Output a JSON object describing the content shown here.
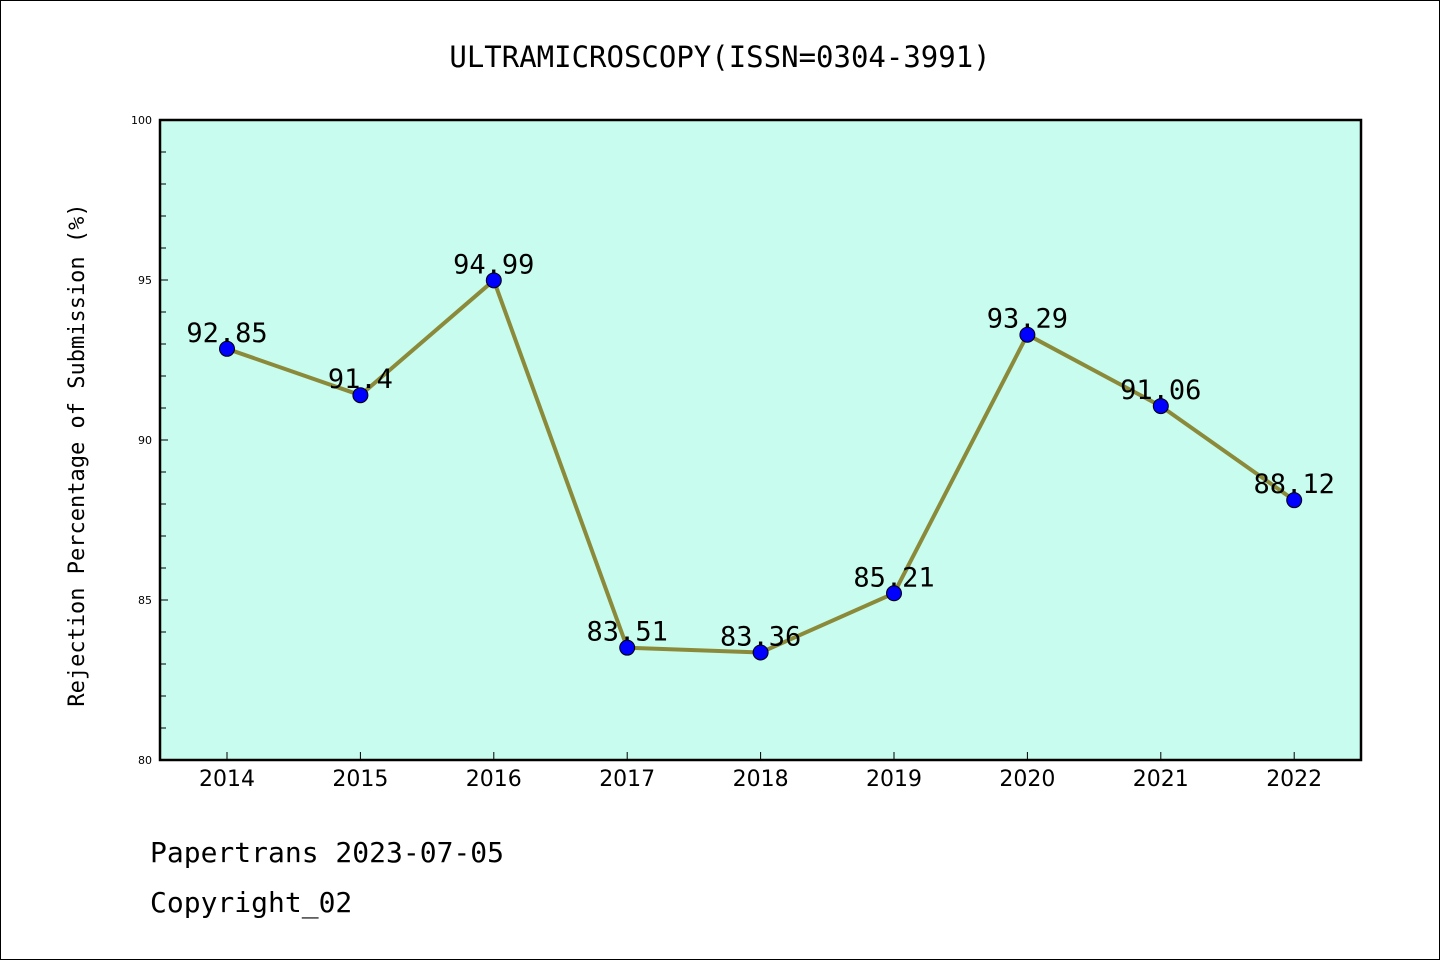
{
  "chart_data": {
    "type": "line",
    "title": "ULTRAMICROSCOPY(ISSN=0304-3991)",
    "xlabel": "",
    "ylabel": "Rejection Percentage of Submission (%)",
    "categories": [
      "2014",
      "2015",
      "2016",
      "2017",
      "2018",
      "2019",
      "2020",
      "2021",
      "2022"
    ],
    "values": [
      92.85,
      91.4,
      94.99,
      83.51,
      83.36,
      85.21,
      93.29,
      91.06,
      88.12
    ],
    "data_labels": [
      "92.85",
      "91.4",
      "94.99",
      "83.51",
      "83.36",
      "85.21",
      "93.29",
      "91.06",
      "88.12"
    ],
    "ylim": [
      80,
      100
    ],
    "yticks": [
      "80",
      "85",
      "90",
      "95",
      "100"
    ],
    "grid": false,
    "colors": {
      "plot_background": "#c8fcee",
      "line": "#8b8a3a",
      "marker": "#0000ff"
    }
  },
  "footer": {
    "source": "Papertrans 2023-07-05",
    "copyright": "Copyright_02"
  }
}
